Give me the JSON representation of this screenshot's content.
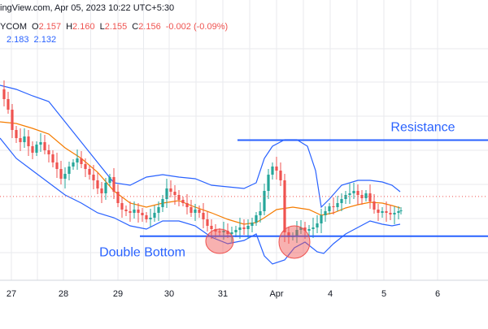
{
  "header": {
    "source_line": "ingView.com, Apr 05, 2023 10:22 UTC+5:30",
    "symbol": "YCOM",
    "open_label": "O",
    "open_value": "2.157",
    "high_label": "H",
    "high_value": "2.160",
    "low_label": "L",
    "low_value": "2.155",
    "close_label": "C",
    "close_value": "2.156",
    "change": "-0.002 (-0.09%)",
    "bb_upper": "2.183",
    "bb_lower": "2.132"
  },
  "colors": {
    "up": "#26a69a",
    "down": "#ef5350",
    "bollinger_band": "#2962ff",
    "bollinger_basis": "#f57c00",
    "level_line": "#2962ff",
    "annotation_text": "#2962ff",
    "highlight_ellipse": "#ef5350",
    "last_price_line": "#ef5350",
    "grid": "#e8eaee"
  },
  "chart_data": {
    "type": "candlestick",
    "title": "",
    "x_ticks": [
      "27",
      "28",
      "29",
      "30",
      "31",
      "Apr",
      "4",
      "5",
      "6"
    ],
    "grid": true,
    "y_range": [
      2.095,
      2.26
    ],
    "resistance_level": 2.2,
    "support_level": 2.125,
    "last_price": 2.156,
    "annotations": [
      {
        "text": "Resistance",
        "near": "resistance_level"
      },
      {
        "text": "Double Bottom",
        "near": "support_level"
      }
    ],
    "highlighted_lows": 2
  }
}
